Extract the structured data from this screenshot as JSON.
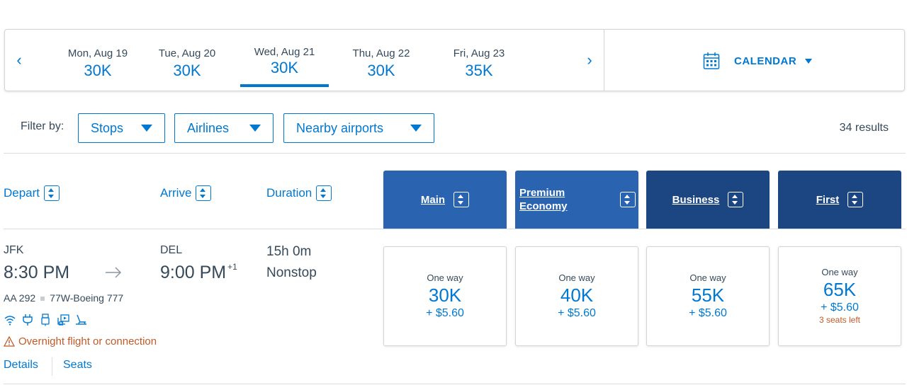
{
  "date_strip": {
    "prev_arrow": "‹",
    "next_arrow": "›",
    "dates": [
      {
        "label": "Mon, Aug 19",
        "price": "30K"
      },
      {
        "label": "Tue, Aug 20",
        "price": "30K"
      },
      {
        "label": "Wed, Aug 21",
        "price": "30K",
        "selected": true
      },
      {
        "label": "Thu, Aug 22",
        "price": "30K"
      },
      {
        "label": "Fri, Aug 23",
        "price": "35K"
      }
    ],
    "calendar_label": "CALENDAR",
    "calendar_icon": "calendar-icon"
  },
  "filters": {
    "label": "Filter by:",
    "buttons": [
      "Stops",
      "Airlines",
      "Nearby airports"
    ],
    "results": "34 results"
  },
  "columns": {
    "depart": "Depart",
    "arrive": "Arrive",
    "duration": "Duration",
    "cabins": [
      "Main",
      "Premium Economy",
      "Business",
      "First"
    ]
  },
  "flight": {
    "origin": "JFK",
    "depart_time": "8:30 PM",
    "destination": "DEL",
    "arrive_time": "9:00 PM",
    "day_offset": "+1",
    "flight_number": "AA 292",
    "aircraft": "77W-Boeing 777",
    "duration": "15h 0m",
    "stops": "Nonstop",
    "amenities": [
      "wifi-icon",
      "power-outlet-icon",
      "usb-icon",
      "entertainment-icon",
      "lie-flat-seat-icon"
    ],
    "warning": "Overnight flight or connection",
    "details_link": "Details",
    "seats_link": "Seats",
    "fares": [
      {
        "cabin": "Main",
        "type": "One way",
        "miles": "30K",
        "tax": "+ $5.60"
      },
      {
        "cabin": "Premium Economy",
        "type": "One way",
        "miles": "40K",
        "tax": "+ $5.60"
      },
      {
        "cabin": "Business",
        "type": "One way",
        "miles": "55K",
        "tax": "+ $5.60"
      },
      {
        "cabin": "First",
        "type": "One way",
        "miles": "65K",
        "tax": "+ $5.60",
        "seats_left": "3 seats left"
      }
    ]
  },
  "colors": {
    "accent": "#0078d2",
    "tab_light": "#2a64b0",
    "tab_dark": "#1c4681",
    "warning": "#c05a28",
    "text": "#36495a"
  }
}
